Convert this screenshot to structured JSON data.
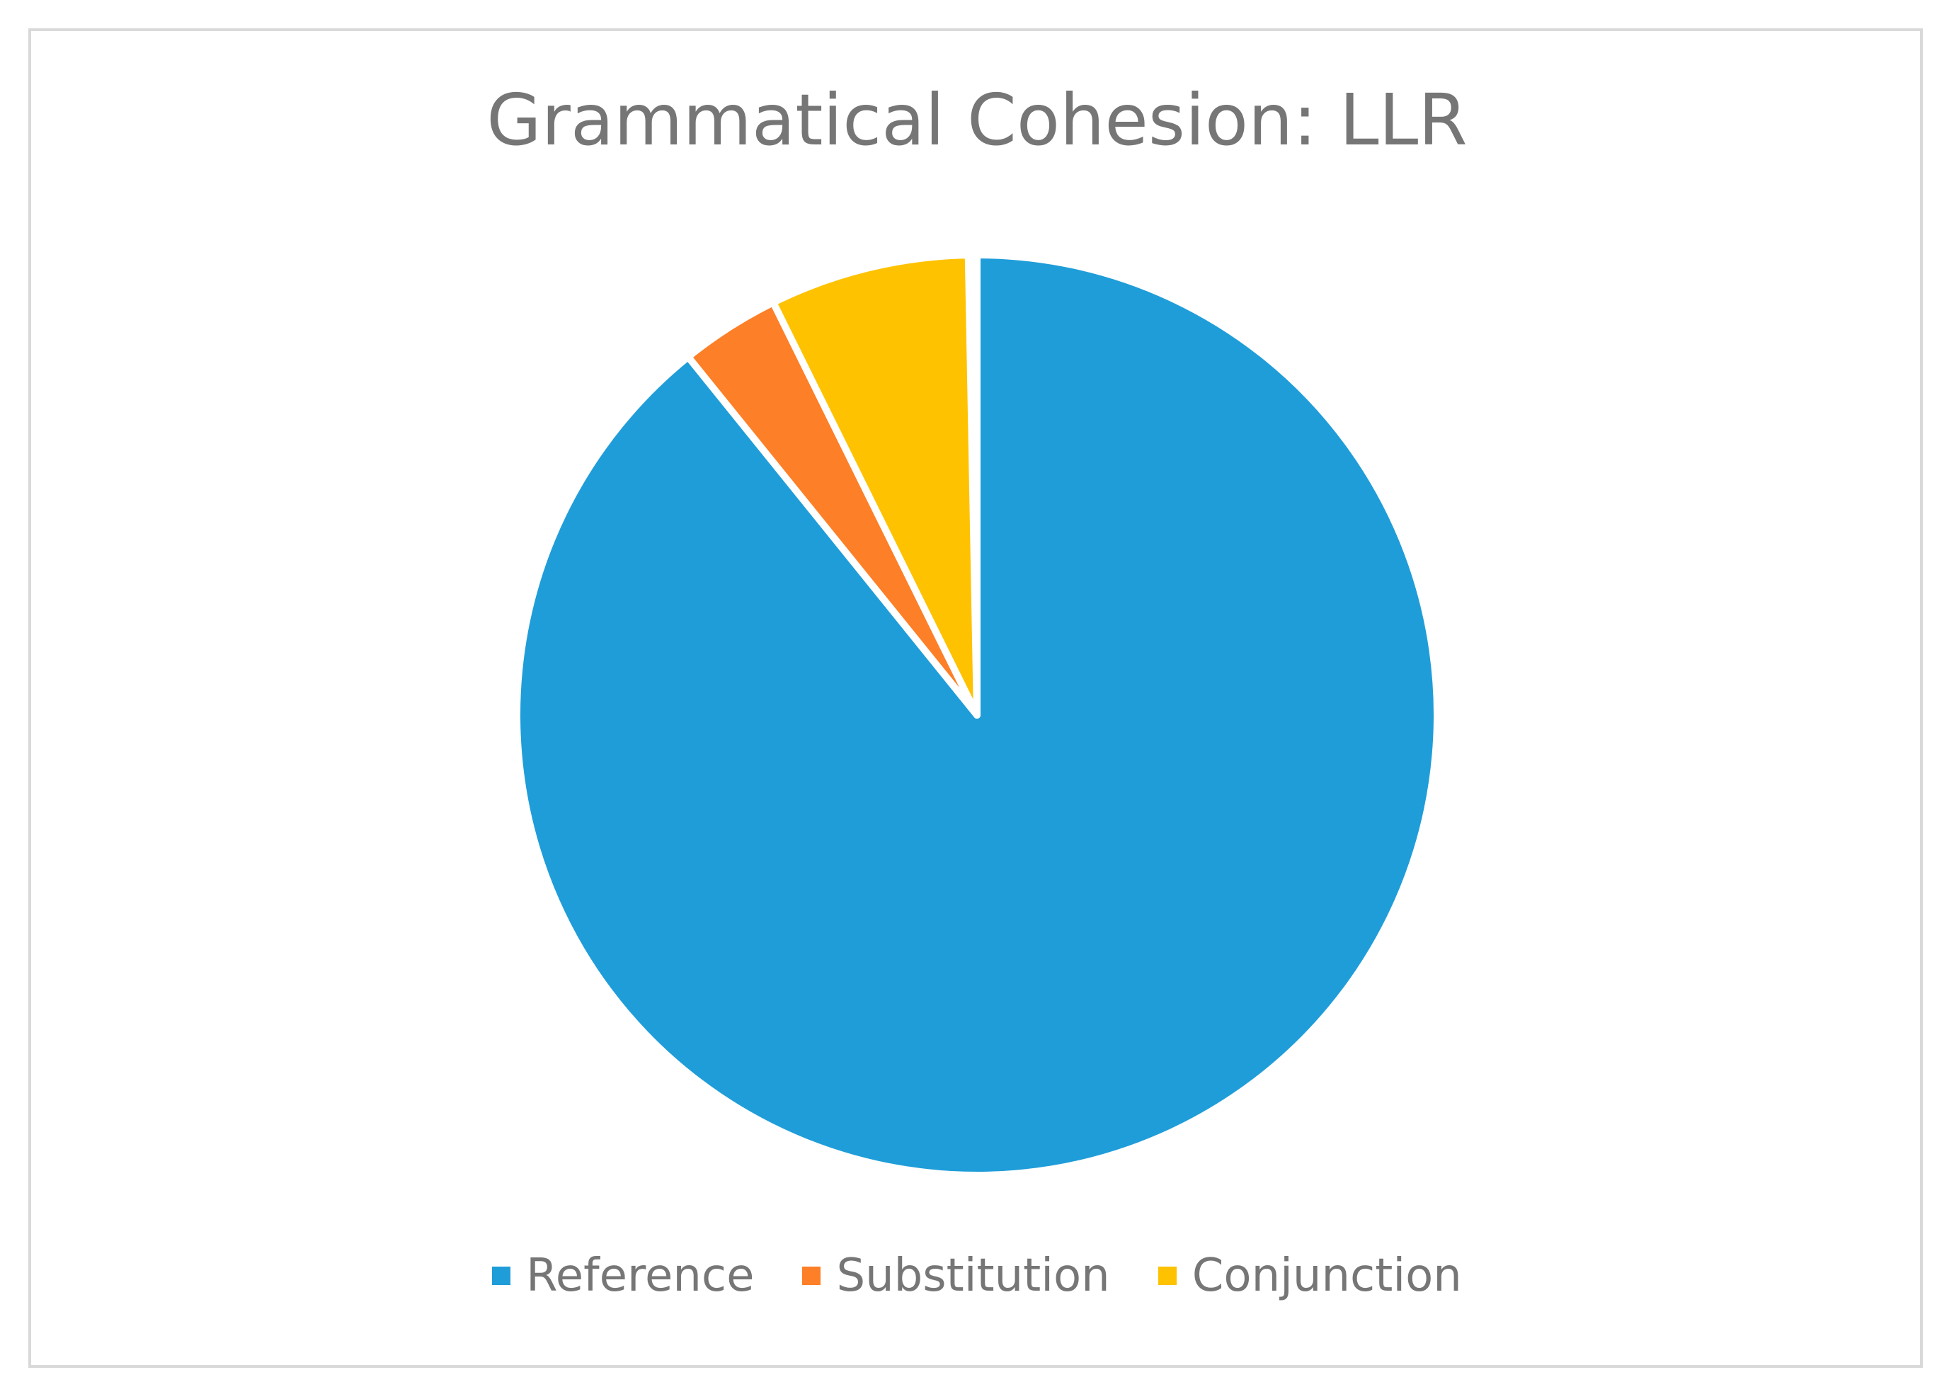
{
  "chart_data": {
    "type": "pie",
    "title": "Grammatical Cohesion: LLR",
    "categories": [
      "Reference",
      "Substitution",
      "Conjunction"
    ],
    "values": [
      89.2,
      3.5,
      7.0
    ],
    "colors": [
      "#1f9dd9",
      "#fd7f27",
      "#fec200"
    ],
    "legend_position": "bottom",
    "start_angle_deg": 0,
    "direction": "clockwise"
  }
}
